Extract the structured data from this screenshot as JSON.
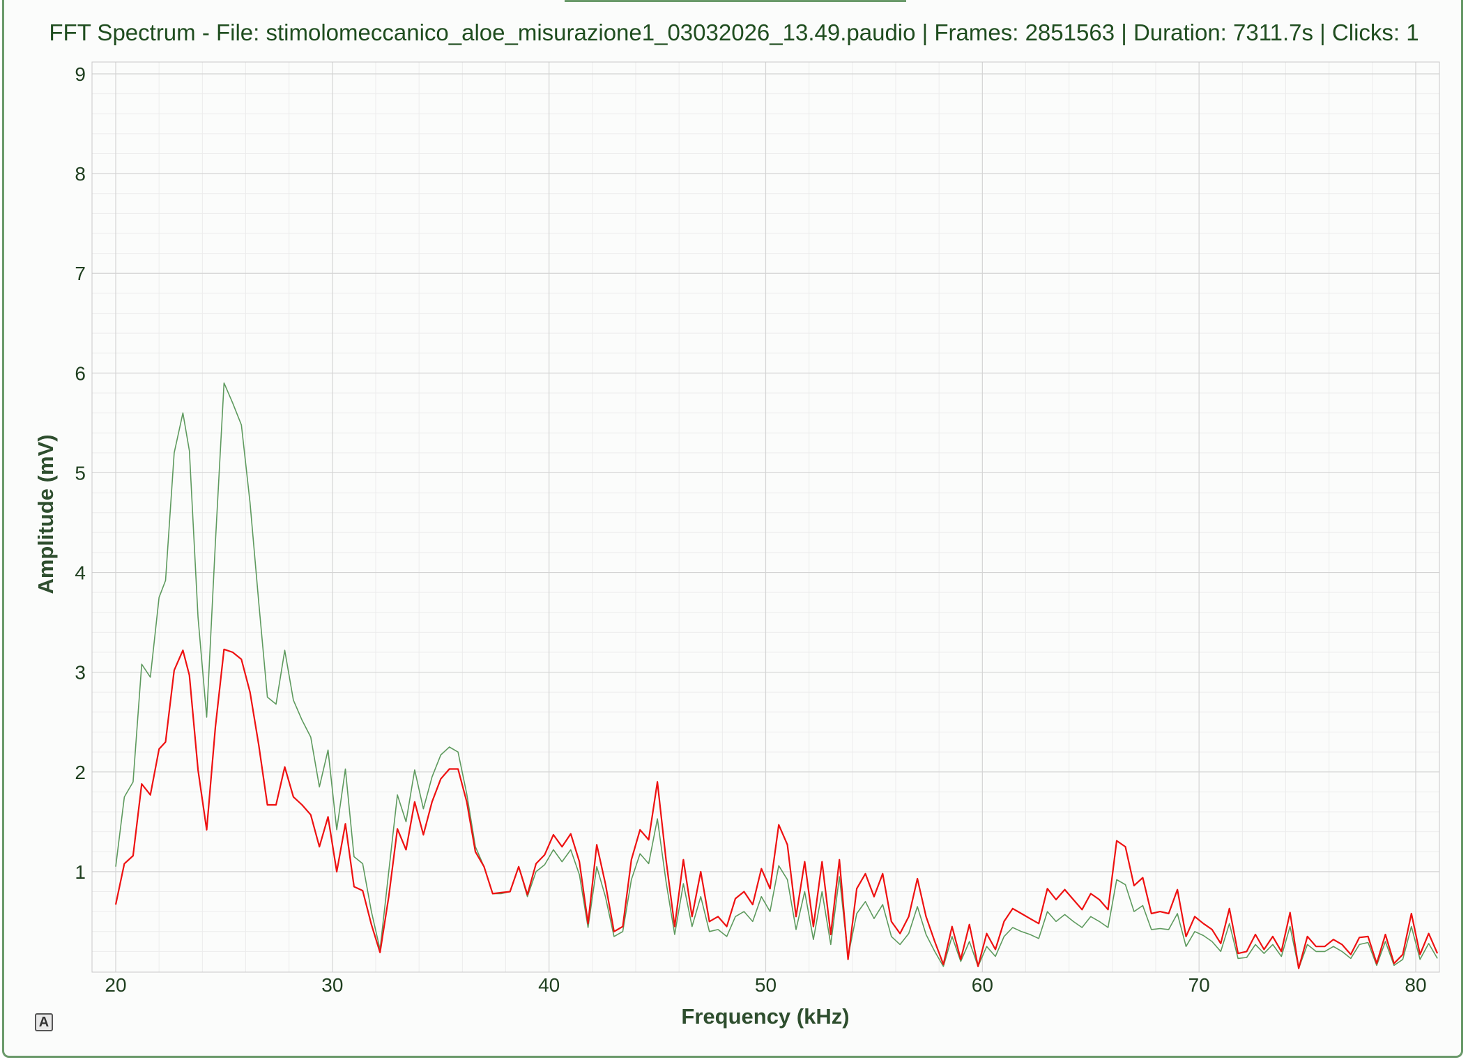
{
  "window": {
    "title": "FFT Spectrum - File: stimolomeccanico_aloe_misurazione1_03032026_13.49.paudio | Frames: 2851563 | Duration: 7311.7s | Clicks: 1",
    "font_icon_glyph": "A"
  },
  "colors": {
    "frame_border": "#6a9a6a",
    "title_text": "#1f4d1f",
    "major_grid": "#d4d4d4",
    "minor_grid": "#ececec",
    "series_green": "#5e9a5e",
    "series_red": "#ee1111"
  },
  "chart_data": {
    "type": "line",
    "title": "FFT Spectrum - File: stimolomeccanico_aloe_misurazione1_03032026_13.49.paudio | Frames: 2851563 | Duration: 7311.7s | Clicks: 1",
    "xlabel": "Frequency (kHz)",
    "ylabel": "Amplitude (mV)",
    "xlim": [
      19,
      81
    ],
    "ylim": [
      0,
      9.1
    ],
    "xticks": [
      20,
      30,
      40,
      50,
      60,
      70,
      80
    ],
    "yticks": [
      1,
      2,
      3,
      4,
      5,
      6,
      7,
      8,
      9
    ],
    "grid": true,
    "legend": "none",
    "series": [
      {
        "color": "#5e9a5e",
        "points": [
          [
            20.0,
            1.05
          ],
          [
            20.4,
            1.75
          ],
          [
            20.8,
            1.9
          ],
          [
            21.2,
            3.08
          ],
          [
            21.6,
            2.95
          ],
          [
            22.0,
            3.75
          ],
          [
            22.3,
            3.92
          ],
          [
            22.7,
            5.2
          ],
          [
            23.1,
            5.6
          ],
          [
            23.4,
            5.22
          ],
          [
            23.8,
            3.55
          ],
          [
            24.2,
            2.55
          ],
          [
            24.6,
            4.3
          ],
          [
            25.0,
            5.9
          ],
          [
            25.4,
            5.7
          ],
          [
            25.8,
            5.48
          ],
          [
            26.2,
            4.7
          ],
          [
            26.6,
            3.7
          ],
          [
            27.0,
            2.75
          ],
          [
            27.4,
            2.68
          ],
          [
            27.8,
            3.22
          ],
          [
            28.2,
            2.72
          ],
          [
            28.6,
            2.52
          ],
          [
            29.0,
            2.35
          ],
          [
            29.4,
            1.85
          ],
          [
            29.8,
            2.22
          ],
          [
            30.2,
            1.42
          ],
          [
            30.6,
            2.03
          ],
          [
            31.0,
            1.15
          ],
          [
            31.4,
            1.08
          ],
          [
            31.8,
            0.6
          ],
          [
            32.2,
            0.22
          ],
          [
            32.6,
            1.0
          ],
          [
            33.0,
            1.77
          ],
          [
            33.4,
            1.5
          ],
          [
            33.8,
            2.02
          ],
          [
            34.2,
            1.63
          ],
          [
            34.6,
            1.95
          ],
          [
            35.0,
            2.17
          ],
          [
            35.4,
            2.25
          ],
          [
            35.8,
            2.2
          ],
          [
            36.2,
            1.78
          ],
          [
            36.6,
            1.25
          ],
          [
            37.0,
            1.05
          ],
          [
            37.4,
            0.78
          ],
          [
            37.8,
            0.78
          ],
          [
            38.2,
            0.8
          ],
          [
            38.6,
            1.05
          ],
          [
            39.0,
            0.75
          ],
          [
            39.4,
            1.0
          ],
          [
            39.8,
            1.07
          ],
          [
            40.2,
            1.22
          ],
          [
            40.6,
            1.1
          ],
          [
            41.0,
            1.22
          ],
          [
            41.4,
            0.97
          ],
          [
            41.8,
            0.44
          ],
          [
            42.2,
            1.05
          ],
          [
            42.6,
            0.75
          ],
          [
            43.0,
            0.35
          ],
          [
            43.4,
            0.4
          ],
          [
            43.8,
            0.92
          ],
          [
            44.2,
            1.18
          ],
          [
            44.6,
            1.08
          ],
          [
            45.0,
            1.53
          ],
          [
            45.4,
            0.9
          ],
          [
            45.8,
            0.37
          ],
          [
            46.2,
            0.88
          ],
          [
            46.6,
            0.45
          ],
          [
            47.0,
            0.75
          ],
          [
            47.4,
            0.4
          ],
          [
            47.8,
            0.42
          ],
          [
            48.2,
            0.35
          ],
          [
            48.6,
            0.55
          ],
          [
            49.0,
            0.6
          ],
          [
            49.4,
            0.5
          ],
          [
            49.8,
            0.75
          ],
          [
            50.2,
            0.6
          ],
          [
            50.6,
            1.06
          ],
          [
            51.0,
            0.92
          ],
          [
            51.4,
            0.42
          ],
          [
            51.8,
            0.8
          ],
          [
            52.2,
            0.32
          ],
          [
            52.6,
            0.8
          ],
          [
            53.0,
            0.27
          ],
          [
            53.4,
            0.95
          ],
          [
            53.8,
            0.15
          ],
          [
            54.2,
            0.58
          ],
          [
            54.6,
            0.7
          ],
          [
            55.0,
            0.53
          ],
          [
            55.4,
            0.67
          ],
          [
            55.8,
            0.35
          ],
          [
            56.2,
            0.27
          ],
          [
            56.6,
            0.38
          ],
          [
            57.0,
            0.65
          ],
          [
            57.4,
            0.37
          ],
          [
            57.8,
            0.2
          ],
          [
            58.2,
            0.05
          ],
          [
            58.6,
            0.35
          ],
          [
            59.0,
            0.1
          ],
          [
            59.4,
            0.3
          ],
          [
            59.8,
            0.05
          ],
          [
            60.2,
            0.25
          ],
          [
            60.6,
            0.15
          ],
          [
            61.0,
            0.35
          ],
          [
            61.4,
            0.44
          ],
          [
            61.8,
            0.4
          ],
          [
            62.2,
            0.37
          ],
          [
            62.6,
            0.33
          ],
          [
            63.0,
            0.6
          ],
          [
            63.4,
            0.5
          ],
          [
            63.8,
            0.57
          ],
          [
            64.2,
            0.5
          ],
          [
            64.6,
            0.44
          ],
          [
            65.0,
            0.55
          ],
          [
            65.4,
            0.5
          ],
          [
            65.8,
            0.44
          ],
          [
            66.2,
            0.92
          ],
          [
            66.6,
            0.87
          ],
          [
            67.0,
            0.6
          ],
          [
            67.4,
            0.66
          ],
          [
            67.8,
            0.42
          ],
          [
            68.2,
            0.43
          ],
          [
            68.6,
            0.42
          ],
          [
            69.0,
            0.58
          ],
          [
            69.4,
            0.25
          ],
          [
            69.8,
            0.4
          ],
          [
            70.2,
            0.36
          ],
          [
            70.6,
            0.3
          ],
          [
            71.0,
            0.2
          ],
          [
            71.4,
            0.48
          ],
          [
            71.8,
            0.13
          ],
          [
            72.2,
            0.14
          ],
          [
            72.6,
            0.27
          ],
          [
            73.0,
            0.18
          ],
          [
            73.4,
            0.27
          ],
          [
            73.8,
            0.15
          ],
          [
            74.2,
            0.45
          ],
          [
            74.6,
            0.03
          ],
          [
            75.0,
            0.27
          ],
          [
            75.4,
            0.2
          ],
          [
            75.8,
            0.2
          ],
          [
            76.2,
            0.25
          ],
          [
            76.6,
            0.2
          ],
          [
            77.0,
            0.13
          ],
          [
            77.4,
            0.27
          ],
          [
            77.8,
            0.29
          ],
          [
            78.2,
            0.06
          ],
          [
            78.6,
            0.3
          ],
          [
            79.0,
            0.06
          ],
          [
            79.4,
            0.12
          ],
          [
            79.8,
            0.45
          ],
          [
            80.2,
            0.12
          ],
          [
            80.6,
            0.28
          ],
          [
            81.0,
            0.13
          ]
        ]
      },
      {
        "color": "#ee1111",
        "points": [
          [
            20.0,
            0.67
          ],
          [
            20.4,
            1.08
          ],
          [
            20.8,
            1.16
          ],
          [
            21.2,
            1.88
          ],
          [
            21.6,
            1.77
          ],
          [
            22.0,
            2.23
          ],
          [
            22.3,
            2.3
          ],
          [
            22.7,
            3.02
          ],
          [
            23.1,
            3.22
          ],
          [
            23.4,
            2.97
          ],
          [
            23.8,
            2.02
          ],
          [
            24.2,
            1.42
          ],
          [
            24.6,
            2.45
          ],
          [
            25.0,
            3.23
          ],
          [
            25.4,
            3.2
          ],
          [
            25.8,
            3.13
          ],
          [
            26.2,
            2.8
          ],
          [
            26.6,
            2.27
          ],
          [
            27.0,
            1.67
          ],
          [
            27.4,
            1.67
          ],
          [
            27.8,
            2.05
          ],
          [
            28.2,
            1.75
          ],
          [
            28.6,
            1.67
          ],
          [
            29.0,
            1.57
          ],
          [
            29.4,
            1.25
          ],
          [
            29.8,
            1.55
          ],
          [
            30.2,
            1.0
          ],
          [
            30.6,
            1.48
          ],
          [
            31.0,
            0.85
          ],
          [
            31.4,
            0.81
          ],
          [
            31.8,
            0.47
          ],
          [
            32.2,
            0.19
          ],
          [
            32.6,
            0.75
          ],
          [
            33.0,
            1.43
          ],
          [
            33.4,
            1.22
          ],
          [
            33.8,
            1.7
          ],
          [
            34.2,
            1.37
          ],
          [
            34.6,
            1.7
          ],
          [
            35.0,
            1.93
          ],
          [
            35.4,
            2.03
          ],
          [
            35.8,
            2.03
          ],
          [
            36.2,
            1.7
          ],
          [
            36.6,
            1.2
          ],
          [
            37.0,
            1.05
          ],
          [
            37.4,
            0.78
          ],
          [
            37.8,
            0.79
          ],
          [
            38.2,
            0.8
          ],
          [
            38.6,
            1.05
          ],
          [
            39.0,
            0.77
          ],
          [
            39.4,
            1.08
          ],
          [
            39.8,
            1.17
          ],
          [
            40.2,
            1.37
          ],
          [
            40.6,
            1.25
          ],
          [
            41.0,
            1.38
          ],
          [
            41.4,
            1.1
          ],
          [
            41.8,
            0.48
          ],
          [
            42.2,
            1.27
          ],
          [
            42.6,
            0.88
          ],
          [
            43.0,
            0.4
          ],
          [
            43.4,
            0.45
          ],
          [
            43.8,
            1.12
          ],
          [
            44.2,
            1.42
          ],
          [
            44.6,
            1.32
          ],
          [
            45.0,
            1.9
          ],
          [
            45.4,
            1.12
          ],
          [
            45.8,
            0.45
          ],
          [
            46.2,
            1.12
          ],
          [
            46.6,
            0.55
          ],
          [
            47.0,
            1.0
          ],
          [
            47.4,
            0.5
          ],
          [
            47.8,
            0.55
          ],
          [
            48.2,
            0.45
          ],
          [
            48.6,
            0.73
          ],
          [
            49.0,
            0.8
          ],
          [
            49.4,
            0.67
          ],
          [
            49.8,
            1.03
          ],
          [
            50.2,
            0.83
          ],
          [
            50.6,
            1.47
          ],
          [
            51.0,
            1.27
          ],
          [
            51.4,
            0.55
          ],
          [
            51.8,
            1.1
          ],
          [
            52.2,
            0.45
          ],
          [
            52.6,
            1.1
          ],
          [
            53.0,
            0.37
          ],
          [
            53.4,
            1.12
          ],
          [
            53.8,
            0.12
          ],
          [
            54.2,
            0.83
          ],
          [
            54.6,
            0.98
          ],
          [
            55.0,
            0.75
          ],
          [
            55.4,
            0.98
          ],
          [
            55.8,
            0.5
          ],
          [
            56.2,
            0.38
          ],
          [
            56.6,
            0.55
          ],
          [
            57.0,
            0.93
          ],
          [
            57.4,
            0.55
          ],
          [
            57.8,
            0.3
          ],
          [
            58.2,
            0.07
          ],
          [
            58.6,
            0.45
          ],
          [
            59.0,
            0.12
          ],
          [
            59.4,
            0.47
          ],
          [
            59.8,
            0.05
          ],
          [
            60.2,
            0.38
          ],
          [
            60.6,
            0.22
          ],
          [
            61.0,
            0.5
          ],
          [
            61.4,
            0.63
          ],
          [
            61.8,
            0.58
          ],
          [
            62.2,
            0.53
          ],
          [
            62.6,
            0.48
          ],
          [
            63.0,
            0.83
          ],
          [
            63.4,
            0.72
          ],
          [
            63.8,
            0.82
          ],
          [
            64.2,
            0.72
          ],
          [
            64.6,
            0.62
          ],
          [
            65.0,
            0.78
          ],
          [
            65.4,
            0.72
          ],
          [
            65.8,
            0.62
          ],
          [
            66.2,
            1.31
          ],
          [
            66.6,
            1.25
          ],
          [
            67.0,
            0.86
          ],
          [
            67.4,
            0.94
          ],
          [
            67.8,
            0.58
          ],
          [
            68.2,
            0.6
          ],
          [
            68.6,
            0.58
          ],
          [
            69.0,
            0.82
          ],
          [
            69.4,
            0.35
          ],
          [
            69.8,
            0.55
          ],
          [
            70.2,
            0.48
          ],
          [
            70.6,
            0.42
          ],
          [
            71.0,
            0.28
          ],
          [
            71.4,
            0.63
          ],
          [
            71.8,
            0.18
          ],
          [
            72.2,
            0.2
          ],
          [
            72.6,
            0.37
          ],
          [
            73.0,
            0.22
          ],
          [
            73.4,
            0.35
          ],
          [
            73.8,
            0.2
          ],
          [
            74.2,
            0.59
          ],
          [
            74.6,
            0.03
          ],
          [
            75.0,
            0.35
          ],
          [
            75.4,
            0.25
          ],
          [
            75.8,
            0.25
          ],
          [
            76.2,
            0.32
          ],
          [
            76.6,
            0.27
          ],
          [
            77.0,
            0.17
          ],
          [
            77.4,
            0.34
          ],
          [
            77.8,
            0.35
          ],
          [
            78.2,
            0.08
          ],
          [
            78.6,
            0.37
          ],
          [
            79.0,
            0.08
          ],
          [
            79.4,
            0.17
          ],
          [
            79.8,
            0.58
          ],
          [
            80.2,
            0.17
          ],
          [
            80.6,
            0.38
          ],
          [
            81.0,
            0.18
          ]
        ]
      }
    ]
  }
}
